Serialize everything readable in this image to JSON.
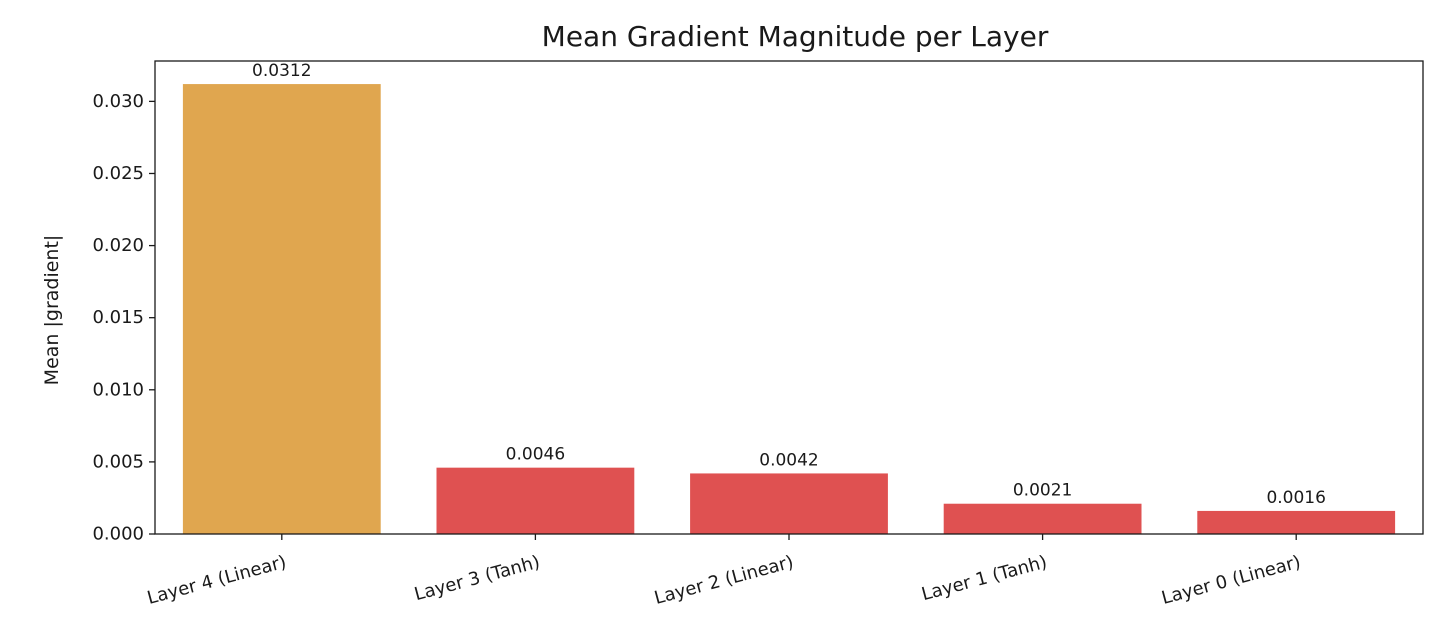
{
  "chart_data": {
    "type": "bar",
    "title": "Mean Gradient Magnitude per Layer",
    "xlabel": "",
    "ylabel": "Mean |gradient|",
    "categories": [
      "Layer 4 (Linear)",
      "Layer 3 (Tanh)",
      "Layer 2 (Linear)",
      "Layer 1 (Tanh)",
      "Layer 0 (Linear)"
    ],
    "values": [
      0.0312,
      0.0046,
      0.0042,
      0.0021,
      0.0016
    ],
    "data_labels": [
      "0.0312",
      "0.0046",
      "0.0042",
      "0.0021",
      "0.0016"
    ],
    "bar_colors": [
      "#e0a64f",
      "#df5151",
      "#df5151",
      "#df5151",
      "#df5151"
    ],
    "ylim": [
      0,
      0.0328
    ],
    "yticks": [
      0.0,
      0.005,
      0.01,
      0.015,
      0.02,
      0.025,
      0.03
    ],
    "ytick_labels": [
      "0.000",
      "0.005",
      "0.010",
      "0.015",
      "0.020",
      "0.025",
      "0.030"
    ],
    "grid": false,
    "legend": "none"
  }
}
